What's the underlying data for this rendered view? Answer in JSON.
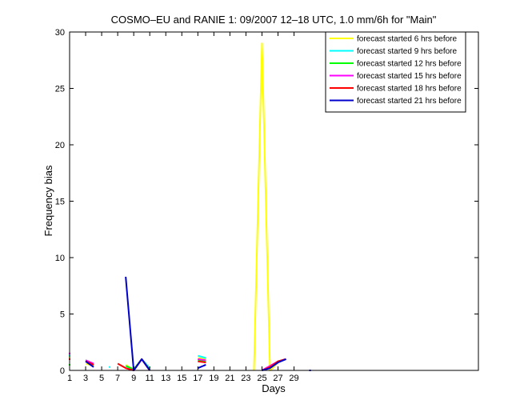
{
  "chart_data": {
    "type": "line",
    "title": "COSMO–EU and RANIE 1: 09/2007 12–18 UTC, 1.0 mm/6h for \"Main\"",
    "xlabel": "Days",
    "ylabel": "Frequency bias",
    "xlim": [
      1,
      52
    ],
    "ylim": [
      0,
      30
    ],
    "xticks": [
      1,
      3,
      5,
      7,
      9,
      11,
      13,
      15,
      17,
      19,
      21,
      23,
      25,
      27,
      29
    ],
    "yticks": [
      0,
      5,
      10,
      15,
      20,
      25,
      30
    ],
    "grid": false,
    "legend_position": "top-right",
    "series": [
      {
        "name": "forecast started 6 hrs before",
        "color": "#ffff00",
        "points": [
          [
            1,
            1.2
          ],
          [
            3,
            0.6
          ],
          [
            4,
            0.4
          ],
          [
            8,
            0.5
          ],
          [
            9,
            0
          ],
          [
            10,
            1.0
          ],
          [
            11,
            0
          ],
          [
            17,
            1.1
          ],
          [
            18,
            1.0
          ],
          [
            24,
            0
          ],
          [
            25,
            29.0
          ],
          [
            26,
            0
          ],
          [
            27,
            0.7
          ],
          [
            28,
            1.0
          ]
        ]
      },
      {
        "name": "forecast started 9 hrs before",
        "color": "#00ffff",
        "points": [
          [
            1,
            1.3
          ],
          [
            3,
            0.9
          ],
          [
            4,
            0.6
          ],
          [
            6,
            0.3
          ],
          [
            8,
            0.4
          ],
          [
            9,
            0
          ],
          [
            10,
            1.0
          ],
          [
            11,
            0.2
          ],
          [
            17,
            1.3
          ],
          [
            18,
            1.1
          ],
          [
            25,
            0
          ],
          [
            26,
            0.3
          ],
          [
            27,
            0.8
          ],
          [
            28,
            1.0
          ]
        ]
      },
      {
        "name": "forecast started 12 hrs before",
        "color": "#00ff00",
        "points": [
          [
            1,
            0.5
          ],
          [
            3,
            0.8
          ],
          [
            4,
            0.5
          ],
          [
            8,
            0.4
          ],
          [
            9,
            0.1
          ],
          [
            10,
            1.0
          ],
          [
            11,
            0.1
          ],
          [
            17,
            0.9
          ],
          [
            18,
            0.8
          ],
          [
            25,
            0
          ],
          [
            26,
            0.3
          ],
          [
            27,
            0.8
          ],
          [
            28,
            1.0
          ]
        ]
      },
      {
        "name": "forecast started 15 hrs before",
        "color": "#ff00ff",
        "points": [
          [
            1,
            1.5
          ],
          [
            3,
            0.9
          ],
          [
            4,
            0.6
          ],
          [
            8,
            0.2
          ],
          [
            9,
            0
          ],
          [
            10,
            1.0
          ],
          [
            11,
            0
          ],
          [
            17,
            1.0
          ],
          [
            18,
            0.9
          ],
          [
            25,
            0
          ],
          [
            26,
            0.4
          ],
          [
            27,
            0.8
          ],
          [
            28,
            1.0
          ]
        ]
      },
      {
        "name": "forecast started 18 hrs before",
        "color": "#ff0000",
        "points": [
          [
            1,
            1.0
          ],
          [
            3,
            0.8
          ],
          [
            4,
            0.5
          ],
          [
            7,
            0.6
          ],
          [
            8,
            0.2
          ],
          [
            9,
            0
          ],
          [
            10,
            1.0
          ],
          [
            11,
            0
          ],
          [
            17,
            0.8
          ],
          [
            18,
            0.7
          ],
          [
            25,
            0
          ],
          [
            26,
            0.3
          ],
          [
            27,
            0.8
          ],
          [
            28,
            1.0
          ]
        ]
      },
      {
        "name": "forecast started 21 hrs before",
        "color": "#0000cc",
        "points": [
          [
            3,
            0.8
          ],
          [
            4,
            0.3
          ],
          [
            8,
            8.3
          ],
          [
            9,
            0
          ],
          [
            10,
            1.0
          ],
          [
            11,
            0
          ],
          [
            17,
            0.2
          ],
          [
            18,
            0.5
          ],
          [
            25,
            0
          ],
          [
            26,
            0.2
          ],
          [
            27,
            0.7
          ],
          [
            28,
            1.0
          ],
          [
            31,
            0
          ]
        ]
      }
    ]
  }
}
